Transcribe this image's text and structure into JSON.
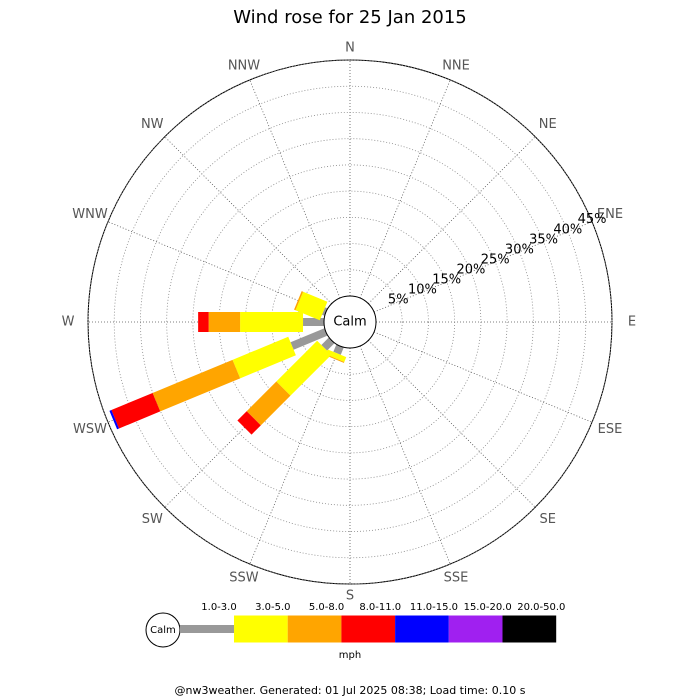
{
  "chart_data": {
    "type": "rose",
    "title": "Wind rose for 25 Jan 2015",
    "categories": [
      "N",
      "NNE",
      "NE",
      "ENE",
      "E",
      "ESE",
      "SE",
      "SSE",
      "S",
      "SSW",
      "SW",
      "WSW",
      "W",
      "WNW",
      "NW",
      "NNW"
    ],
    "series": [
      {
        "name": "1.0-3.0",
        "color": "#999999",
        "values": [
          0,
          0,
          0,
          0,
          0,
          0,
          0,
          0,
          0,
          1.5,
          2,
          7,
          4,
          0.5,
          0,
          0
        ]
      },
      {
        "name": "3.0-5.0",
        "color": "#ffff00",
        "values": [
          0,
          0,
          0,
          0,
          0,
          0,
          0,
          0,
          0,
          1,
          11,
          11.5,
          12,
          5,
          0,
          0
        ]
      },
      {
        "name": "5.0-8.0",
        "color": "#ffa500",
        "values": [
          0,
          0,
          0,
          0,
          0,
          0,
          0,
          0,
          0,
          0.2,
          8,
          16.5,
          6,
          0.3,
          0,
          0
        ]
      },
      {
        "name": "8.0-11.0",
        "color": "#ff0000",
        "values": [
          0,
          0,
          0,
          0,
          0,
          0,
          0,
          0,
          0,
          0,
          2.5,
          8.5,
          2,
          0,
          0,
          0
        ]
      },
      {
        "name": "11.0-15.0",
        "color": "#0000ff",
        "values": [
          0,
          0,
          0,
          0,
          0,
          0,
          0,
          0,
          0,
          0,
          0,
          0.4,
          0,
          0,
          0,
          0
        ]
      },
      {
        "name": "15.0-20.0",
        "color": "#a020f0",
        "values": [
          0,
          0,
          0,
          0,
          0,
          0,
          0,
          0,
          0,
          0,
          0,
          0,
          0,
          0,
          0,
          0
        ]
      },
      {
        "name": "20.0-50.0",
        "color": "#000000",
        "values": [
          0,
          0,
          0,
          0,
          0,
          0,
          0,
          0,
          0,
          0,
          0,
          0,
          0,
          0,
          0,
          0
        ]
      }
    ],
    "ylim": [
      0,
      45
    ],
    "yticks": [
      {
        "value": 5,
        "label": "5%"
      },
      {
        "value": 10,
        "label": "10%"
      },
      {
        "value": 15,
        "label": "15%"
      },
      {
        "value": 20,
        "label": "20%"
      },
      {
        "value": 25,
        "label": "25%"
      },
      {
        "value": 30,
        "label": "30%"
      },
      {
        "value": 35,
        "label": "35%"
      },
      {
        "value": 40,
        "label": "40%"
      },
      {
        "value": 45,
        "label": "45%"
      }
    ],
    "grid": true,
    "calm_label": "Calm",
    "legend_calm": "Calm",
    "unit": "mph",
    "footer": "@nw3weather. Generated: 01 Jul 2025 08:38; Load time: 0.10 s"
  }
}
